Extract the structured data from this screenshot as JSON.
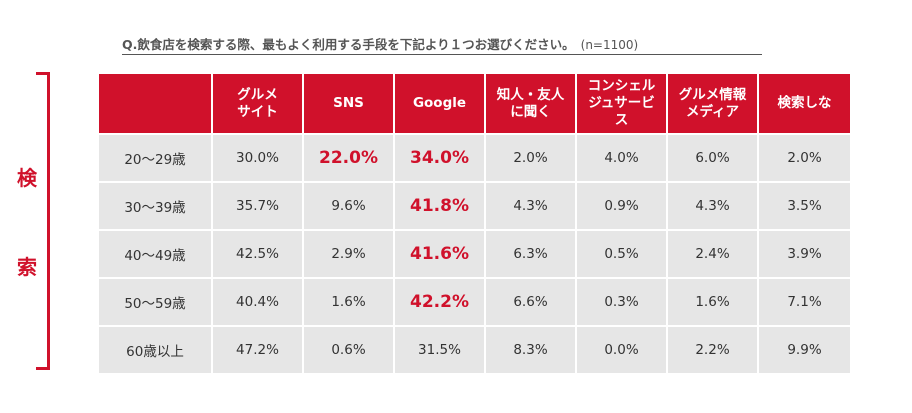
{
  "header": {
    "question": "Q.飲食店を検索する際、最もよく利用する手段を下記より１つお選びください。",
    "sample": "(n=1100)"
  },
  "side_label": {
    "char1": "検",
    "char2": "索",
    "color": "#d0112b"
  },
  "colors": {
    "header_bg": "#d0112b",
    "cell_bg": "#e6e6e6",
    "highlight": "#d0112b"
  },
  "chart_data": {
    "type": "table",
    "columns": [
      "",
      "グルメ\nサイト",
      "SNS",
      "Google",
      "知人・友人\nに聞く",
      "コンシェル\nジュサービ\nス",
      "グルメ情報\nメディア",
      "検索しな"
    ],
    "rows": [
      {
        "label": "20〜29歳",
        "values": [
          "30.0%",
          "22.0%",
          "34.0%",
          "2.0%",
          "4.0%",
          "6.0%",
          "2.0%"
        ],
        "highlight": [
          false,
          true,
          true,
          false,
          false,
          false,
          false
        ]
      },
      {
        "label": "30〜39歳",
        "values": [
          "35.7%",
          "9.6%",
          "41.8%",
          "4.3%",
          "0.9%",
          "4.3%",
          "3.5%"
        ],
        "highlight": [
          false,
          false,
          true,
          false,
          false,
          false,
          false
        ]
      },
      {
        "label": "40〜49歳",
        "values": [
          "42.5%",
          "2.9%",
          "41.6%",
          "6.3%",
          "0.5%",
          "2.4%",
          "3.9%"
        ],
        "highlight": [
          false,
          false,
          true,
          false,
          false,
          false,
          false
        ]
      },
      {
        "label": "50〜59歳",
        "values": [
          "40.4%",
          "1.6%",
          "42.2%",
          "6.6%",
          "0.3%",
          "1.6%",
          "7.1%"
        ],
        "highlight": [
          false,
          false,
          true,
          false,
          false,
          false,
          false
        ]
      },
      {
        "label": "60歳以上",
        "values": [
          "47.2%",
          "0.6%",
          "31.5%",
          "8.3%",
          "0.0%",
          "2.2%",
          "9.9%"
        ],
        "highlight": [
          false,
          false,
          false,
          false,
          false,
          false,
          false
        ]
      }
    ]
  }
}
